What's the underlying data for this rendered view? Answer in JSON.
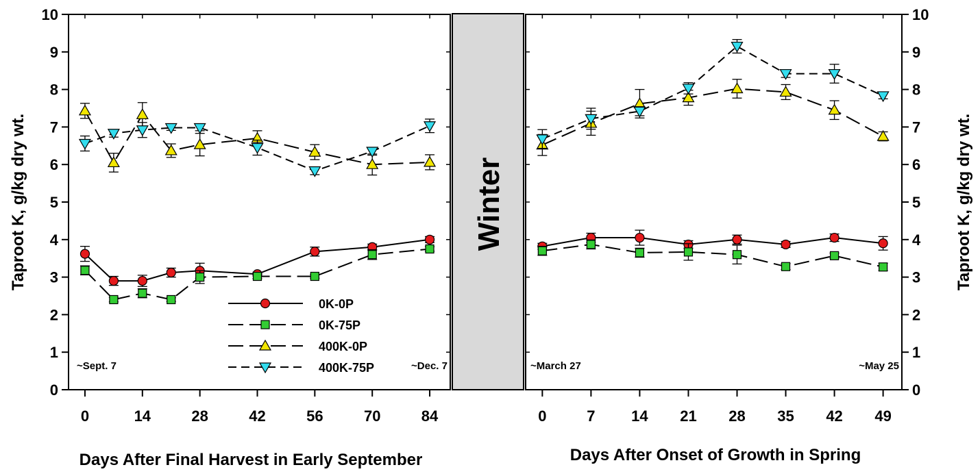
{
  "chart_data": {
    "type": "line",
    "y_axis": {
      "label": "Taproot K, g/kg dry wt.",
      "range": [
        0,
        10
      ],
      "ticks": [
        0,
        1,
        2,
        3,
        4,
        5,
        6,
        7,
        8,
        9,
        10
      ]
    },
    "legend": {
      "position": "lower-right of left panel",
      "entries": [
        "0K-0P",
        "0K-75P",
        "400K-0P",
        "400K-75P"
      ]
    },
    "series_styles": [
      {
        "name": "0K-0P",
        "marker": "circle",
        "color": "#e41a1c",
        "dash": "solid"
      },
      {
        "name": "0K-75P",
        "marker": "square",
        "color": "#33cc33",
        "dash": "long-dash"
      },
      {
        "name": "400K-0P",
        "marker": "triangle-up",
        "color": "#f2e600",
        "dash": "long-dash"
      },
      {
        "name": "400K-75P",
        "marker": "triangle-down",
        "color": "#33ddee",
        "dash": "dash"
      }
    ],
    "winter_label": "Winter",
    "panels": [
      {
        "xlabel": "Days After Final Harvest in Early September",
        "xlim": [
          -4,
          89
        ],
        "xticks": [
          0,
          14,
          28,
          42,
          56,
          70,
          84
        ],
        "start_note": "~Sept. 7",
        "end_note": "~Dec. 7",
        "series": [
          {
            "name": "0K-0P",
            "x": [
              0,
              7,
              14,
              21,
              28,
              42,
              56,
              70,
              84
            ],
            "y": [
              3.62,
              2.9,
              2.9,
              3.12,
              3.17,
              3.08,
              3.68,
              3.8,
              4.0
            ],
            "err": [
              0.2,
              0.12,
              0.15,
              0.12,
              0.2,
              0.05,
              0.12,
              0.08,
              0.08
            ]
          },
          {
            "name": "0K-75P",
            "x": [
              0,
              7,
              14,
              21,
              28,
              42,
              56,
              70,
              84
            ],
            "y": [
              3.18,
              2.4,
              2.57,
              2.4,
              3.0,
              3.02,
              3.02,
              3.6,
              3.75
            ],
            "err": [
              0.12,
              0.06,
              0.12,
              0.05,
              0.17,
              0.06,
              0.05,
              0.13,
              0.06
            ]
          },
          {
            "name": "400K-0P",
            "x": [
              0,
              7,
              14,
              21,
              28,
              42,
              56,
              70,
              84
            ],
            "y": [
              7.43,
              6.05,
              7.33,
              6.37,
              6.53,
              6.7,
              6.33,
              6.0,
              6.06
            ],
            "err": [
              0.2,
              0.25,
              0.32,
              0.18,
              0.3,
              0.2,
              0.2,
              0.28,
              0.2
            ]
          },
          {
            "name": "400K-75P",
            "x": [
              0,
              7,
              14,
              21,
              28,
              42,
              56,
              70,
              84
            ],
            "y": [
              6.56,
              6.83,
              6.92,
              6.98,
              6.98,
              6.45,
              5.83,
              6.35,
              7.03
            ],
            "err": [
              0.2,
              0.1,
              0.2,
              0.07,
              0.08,
              0.2,
              0.1,
              0.1,
              0.18
            ]
          }
        ]
      },
      {
        "xlabel": "Days After Onset of Growth in Spring",
        "xlim": [
          -2.4,
          51.7
        ],
        "xticks": [
          0,
          7,
          14,
          21,
          28,
          35,
          42,
          49
        ],
        "start_note": "~March 27",
        "end_note": "~May 25",
        "series": [
          {
            "name": "0K-0P",
            "x": [
              0,
              7,
              14,
              21,
              28,
              35,
              42,
              49
            ],
            "y": [
              3.82,
              4.05,
              4.05,
              3.87,
              4.0,
              3.87,
              4.05,
              3.9
            ],
            "err": [
              0.08,
              0.12,
              0.2,
              0.1,
              0.12,
              0.08,
              0.1,
              0.18
            ]
          },
          {
            "name": "0K-75P",
            "x": [
              0,
              7,
              14,
              21,
              28,
              35,
              42,
              49
            ],
            "y": [
              3.7,
              3.87,
              3.65,
              3.67,
              3.6,
              3.28,
              3.57,
              3.27
            ],
            "err": [
              0.12,
              0.12,
              0.12,
              0.22,
              0.25,
              0.08,
              0.07,
              0.1
            ]
          },
          {
            "name": "400K-0P",
            "x": [
              0,
              7,
              14,
              21,
              28,
              35,
              42,
              49
            ],
            "y": [
              6.52,
              7.1,
              7.62,
              7.78,
              8.02,
              7.93,
              7.45,
              6.75
            ],
            "err": [
              0.28,
              0.32,
              0.38,
              0.2,
              0.25,
              0.2,
              0.25,
              0.12
            ]
          },
          {
            "name": "400K-75P",
            "x": [
              0,
              7,
              14,
              21,
              28,
              35,
              42,
              49
            ],
            "y": [
              6.68,
              7.22,
              7.42,
              8.03,
              9.15,
              8.42,
              8.42,
              7.83
            ],
            "err": [
              0.25,
              0.28,
              0.12,
              0.15,
              0.18,
              0.1,
              0.25,
              0.08
            ]
          }
        ]
      }
    ]
  }
}
